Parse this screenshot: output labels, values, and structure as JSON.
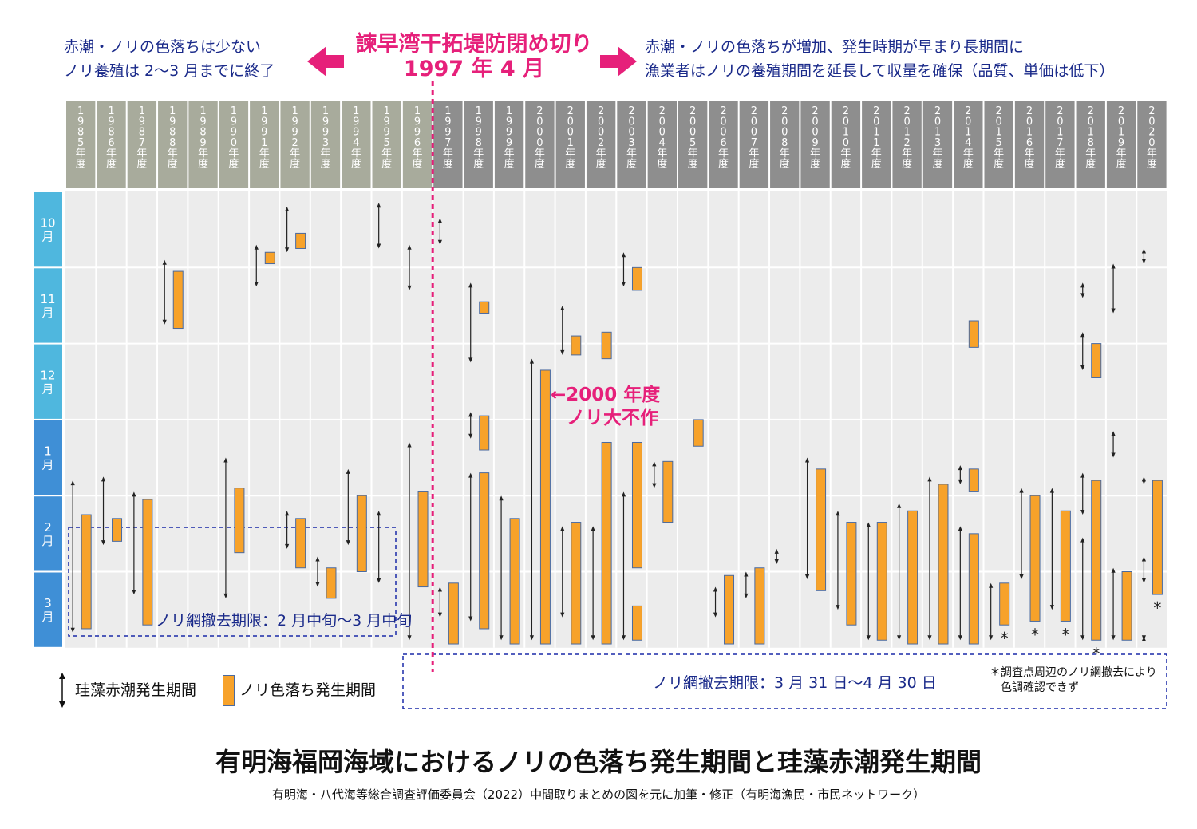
{
  "header": {
    "left_note": [
      "赤潮・ノリの色落ちは少ない",
      "ノリ養殖は 2〜3 月までに終了"
    ],
    "center_title": [
      "諫早湾干拓堤防閉め切り",
      "1997 年 4 月"
    ],
    "right_note": [
      "赤潮・ノリの色落ちが増加、発生時期が早まり長期間に",
      "漁業者はノリの養殖期間を延長して収量を確保（品質、単価は低下）"
    ]
  },
  "colors": {
    "pre_header": "#a8ab9c",
    "post_header": "#8e8e8e",
    "month_header_autumn": "#4fb7de",
    "month_header_winter": "#3f8fd6",
    "bar_fill": "#f7a22a",
    "bar_stroke": "#4a6aa0",
    "plot_bg": "#ececec",
    "divider": "#e6207a",
    "cutoff_box": "#1a2aa8"
  },
  "chart_data": {
    "type": "range",
    "title": "有明海福岡海域におけるノリの色落ち発生期間と珪藻赤潮発生期間",
    "subtitle": "有明海・八代海等総合調査評価委員会（2022）中間取りまとめの図を元に加筆・修正（有明海漁民・市民ネットワーク）",
    "years": [
      "1985年度",
      "1986年度",
      "1987年度",
      "1988年度",
      "1989年度",
      "1990年度",
      "1991年度",
      "1992年度",
      "1993年度",
      "1994年度",
      "1995年度",
      "1996年度",
      "1997年度",
      "1998年度",
      "1999年度",
      "2000年度",
      "2001年度",
      "2002年度",
      "2003年度",
      "2004年度",
      "2005年度",
      "2006年度",
      "2007年度",
      "2008年度",
      "2009年度",
      "2010年度",
      "2011年度",
      "2012年度",
      "2013年度",
      "2014年度",
      "2015年度",
      "2016年度",
      "2017年度",
      "2018年度",
      "2019年度",
      "2020年度"
    ],
    "months": [
      "10月",
      "11月",
      "12月",
      "1月",
      "2月",
      "3月"
    ],
    "y_unit": "months since 1 Oct",
    "ylim": [
      0,
      6
    ],
    "divider_label": "諫早湾干拓堤防閉め切り 1997 年 4 月",
    "red_tide": [
      [
        0,
        [
          3.8,
          5.8
        ]
      ],
      [
        1,
        [
          3.75,
          4.65
        ]
      ],
      [
        2,
        [
          3.95,
          5.3
        ]
      ],
      [
        3,
        [
          0.9,
          1.75
        ]
      ],
      [
        5,
        [
          3.5,
          5.35
        ]
      ],
      [
        6,
        [
          0.7,
          1.25
        ]
      ],
      [
        7,
        [
          0.2,
          0.8
        ]
      ],
      [
        7,
        [
          4.2,
          4.7
        ]
      ],
      [
        8,
        [
          4.8,
          5.2
        ]
      ],
      [
        9,
        [
          3.65,
          4.65
        ]
      ],
      [
        10,
        [
          0.15,
          0.75
        ]
      ],
      [
        10,
        [
          4.2,
          5.15
        ]
      ],
      [
        11,
        [
          0.7,
          1.3
        ]
      ],
      [
        11,
        [
          3.3,
          5.9
        ]
      ],
      [
        12,
        [
          0.35,
          0.7
        ]
      ],
      [
        12,
        [
          5.2,
          5.6
        ]
      ],
      [
        13,
        [
          1.2,
          2.25
        ]
      ],
      [
        13,
        [
          2.9,
          3.25
        ]
      ],
      [
        13,
        [
          3.7,
          5.65
        ]
      ],
      [
        14,
        [
          4.0,
          5.9
        ]
      ],
      [
        15,
        [
          2.2,
          5.9
        ]
      ],
      [
        16,
        [
          1.5,
          2.15
        ]
      ],
      [
        16,
        [
          4.4,
          5.6
        ]
      ],
      [
        17,
        [
          4.4,
          5.9
        ]
      ],
      [
        18,
        [
          0.8,
          1.25
        ]
      ],
      [
        18,
        [
          3.95,
          5.9
        ]
      ],
      [
        19,
        [
          3.55,
          3.9
        ]
      ],
      [
        21,
        [
          5.2,
          5.6
        ]
      ],
      [
        22,
        [
          5.0,
          5.35
        ]
      ],
      [
        23,
        [
          4.7,
          4.9
        ]
      ],
      [
        24,
        [
          3.5,
          5.1
        ]
      ],
      [
        25,
        [
          4.2,
          5.5
        ]
      ],
      [
        26,
        [
          4.35,
          5.9
        ]
      ],
      [
        27,
        [
          4.1,
          5.9
        ]
      ],
      [
        28,
        [
          3.75,
          5.9
        ]
      ],
      [
        29,
        [
          3.6,
          3.85
        ]
      ],
      [
        29,
        [
          4.4,
          5.9
        ]
      ],
      [
        30,
        [
          5.15,
          5.9
        ]
      ],
      [
        31,
        [
          3.9,
          5.1
        ]
      ],
      [
        32,
        [
          3.9,
          5.5
        ]
      ],
      [
        33,
        [
          1.2,
          1.4
        ]
      ],
      [
        33,
        [
          1.85,
          2.35
        ]
      ],
      [
        33,
        [
          3.7,
          4.25
        ]
      ],
      [
        33,
        [
          4.55,
          5.9
        ]
      ],
      [
        34,
        [
          0.95,
          1.6
        ]
      ],
      [
        34,
        [
          3.15,
          3.5
        ]
      ],
      [
        34,
        [
          4.95,
          5.9
        ]
      ],
      [
        35,
        [
          0.75,
          0.95
        ]
      ],
      [
        35,
        [
          3.75,
          3.85
        ]
      ],
      [
        35,
        [
          4.8,
          5.15
        ]
      ],
      [
        35,
        [
          5.85,
          5.9
        ]
      ]
    ],
    "discoloration": [
      [
        0,
        [
          4.25,
          5.75
        ]
      ],
      [
        1,
        [
          4.3,
          4.6
        ]
      ],
      [
        2,
        [
          4.05,
          5.7
        ]
      ],
      [
        3,
        [
          1.05,
          1.8
        ]
      ],
      [
        5,
        [
          3.9,
          4.75
        ]
      ],
      [
        6,
        [
          0.8,
          0.95
        ]
      ],
      [
        7,
        [
          0.55,
          0.75
        ]
      ],
      [
        7,
        [
          4.3,
          4.95
        ]
      ],
      [
        8,
        [
          4.95,
          5.35
        ]
      ],
      [
        9,
        [
          4.0,
          5.0
        ]
      ],
      [
        11,
        [
          3.95,
          5.2
        ]
      ],
      [
        12,
        [
          5.15,
          5.95
        ]
      ],
      [
        13,
        [
          1.45,
          1.6
        ]
      ],
      [
        13,
        [
          2.95,
          3.4
        ]
      ],
      [
        13,
        [
          3.7,
          5.75
        ]
      ],
      [
        14,
        [
          4.3,
          5.95
        ]
      ],
      [
        15,
        [
          2.35,
          5.95
        ]
      ],
      [
        16,
        [
          1.9,
          2.15
        ]
      ],
      [
        16,
        [
          4.35,
          5.95
        ]
      ],
      [
        17,
        [
          1.85,
          2.2
        ]
      ],
      [
        17,
        [
          3.3,
          5.95
        ]
      ],
      [
        18,
        [
          1.0,
          1.3
        ]
      ],
      [
        18,
        [
          3.3,
          4.95
        ]
      ],
      [
        18,
        [
          5.45,
          5.9
        ]
      ],
      [
        19,
        [
          3.55,
          4.35
        ]
      ],
      [
        20,
        [
          3.0,
          3.35
        ]
      ],
      [
        21,
        [
          5.05,
          5.95
        ]
      ],
      [
        22,
        [
          4.95,
          5.95
        ]
      ],
      [
        24,
        [
          3.65,
          5.25
        ]
      ],
      [
        25,
        [
          4.35,
          5.7
        ]
      ],
      [
        26,
        [
          4.35,
          5.9
        ]
      ],
      [
        27,
        [
          4.2,
          5.95
        ]
      ],
      [
        28,
        [
          3.85,
          5.95
        ]
      ],
      [
        29,
        [
          1.7,
          2.05
        ]
      ],
      [
        29,
        [
          3.65,
          3.95
        ]
      ],
      [
        29,
        [
          4.5,
          5.95
        ]
      ],
      [
        30,
        [
          5.15,
          5.7
        ]
      ],
      [
        31,
        [
          4.0,
          5.65
        ]
      ],
      [
        32,
        [
          4.2,
          5.65
        ]
      ],
      [
        33,
        [
          2.0,
          2.45
        ]
      ],
      [
        33,
        [
          3.8,
          5.9
        ]
      ],
      [
        34,
        [
          5.0,
          5.9
        ]
      ],
      [
        35,
        [
          3.8,
          5.3
        ]
      ]
    ],
    "asterisk_years": [
      30,
      31,
      32,
      33,
      35
    ],
    "annotation": [
      "←2000 年度",
      "ノリ大不作"
    ],
    "cutoff_before": "ノリ網撤去期限：2 月中旬〜3 月中旬",
    "cutoff_after": "ノリ網撤去期限：3 月 31 日〜4 月 30 日",
    "legend": [
      "珪藻赤潮発生期間",
      "ノリ色落ち発生期間"
    ],
    "footnote": [
      "＊調査点周辺のノリ網撤去により",
      "色調確認できず"
    ]
  }
}
